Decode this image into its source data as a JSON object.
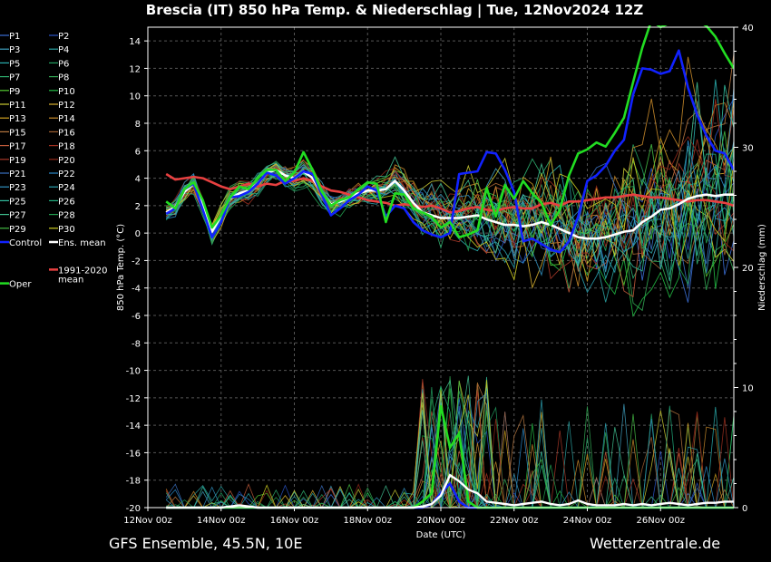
{
  "title": "Brescia  (IT)  850 hPa Temp. & Niederschlag | Tue, 12Nov2024 12Z",
  "footer_left": "GFS Ensemble, 45.5N, 10E",
  "footer_right": "Wetterzentrale.de",
  "chart_data": {
    "type": "line",
    "title": "Brescia  (IT)  850 hPa Temp. & Niederschlag | Tue, 12Nov2024 12Z",
    "xlabel": "Date (UTC)",
    "ylabel": "850 hPa Temp. (°C)",
    "y2label": "Niederschlag (mm)",
    "x_ticks": [
      "12Nov 00z",
      "14Nov 00z",
      "16Nov 00z",
      "18Nov 00z",
      "20Nov 00z",
      "22Nov 00z",
      "24Nov 00z",
      "26Nov 00z"
    ],
    "x_range_days": [
      0,
      16
    ],
    "ylim": [
      -20,
      15
    ],
    "y_ticks": [
      -20,
      -18,
      -16,
      -14,
      -12,
      -10,
      -8,
      -6,
      -4,
      -2,
      0,
      2,
      4,
      6,
      8,
      10,
      12,
      14
    ],
    "y2lim": [
      0,
      40
    ],
    "y2_ticks": [
      0,
      10,
      20,
      30,
      40
    ],
    "grid": true,
    "legend_placement": "left-outside",
    "legend": [
      "P1",
      "P2",
      "P3",
      "P4",
      "P5",
      "P6",
      "P7",
      "P8",
      "P9",
      "P10",
      "P11",
      "P12",
      "P13",
      "P14",
      "P15",
      "P16",
      "P17",
      "P18",
      "P19",
      "P20",
      "P21",
      "P22",
      "P23",
      "P24",
      "P25",
      "P26",
      "P27",
      "P28",
      "P29",
      "P30",
      "Control",
      "Ens. mean",
      "1991-2020 mean",
      "Oper"
    ],
    "colors": {
      "oper": "#22dd22",
      "control": "#1122ff",
      "ens_mean": "#ffffff",
      "climate_mean": "#e84040",
      "members": [
        "#3b6fd6",
        "#2a55c8",
        "#3fa0c0",
        "#2aa0a0",
        "#2ab0b0",
        "#22a060",
        "#2fb070",
        "#33aa55",
        "#55cc33",
        "#22bb44",
        "#cccc33",
        "#d8b030",
        "#d0a020",
        "#c88a2a",
        "#b87840",
        "#a06030",
        "#c05a3a",
        "#a03020",
        "#a83828",
        "#902818",
        "#3a70c0",
        "#2a88c8",
        "#3090c0",
        "#2aa0b0",
        "#33c0a0",
        "#22b080",
        "#40c090",
        "#22a050",
        "#44bb44",
        "#cccc22"
      ]
    },
    "x_days": [
      0.5,
      0.75,
      1.0,
      1.25,
      1.5,
      1.75,
      2.0,
      2.25,
      2.5,
      2.75,
      3.0,
      3.25,
      3.5,
      3.75,
      4.0,
      4.25,
      4.5,
      4.75,
      5.0,
      5.25,
      5.5,
      5.75,
      6.0,
      6.25,
      6.5,
      6.75,
      7.0,
      7.25,
      7.5,
      7.75,
      8.0,
      8.25,
      8.5,
      8.75,
      9.0,
      9.25,
      9.5,
      9.75,
      10.0,
      10.25,
      10.5,
      10.75,
      11.0,
      11.25,
      11.5,
      11.75,
      12.0,
      12.25,
      12.5,
      12.75,
      13.0,
      13.25,
      13.5,
      13.75,
      14.0,
      14.25,
      14.5,
      14.75,
      15.0,
      15.25,
      15.5,
      15.75,
      16.0
    ],
    "series": [
      {
        "name": "Oper",
        "values": [
          2.3,
          1.8,
          3.2,
          3.7,
          2.4,
          0.4,
          1.3,
          2.6,
          3.4,
          3.2,
          4.0,
          4.6,
          4.6,
          3.8,
          4.4,
          5.9,
          4.6,
          3.0,
          2.0,
          2.4,
          2.6,
          3.2,
          3.7,
          3.6,
          0.8,
          2.9,
          2.8,
          1.8,
          1.5,
          1.2,
          0.4,
          0.8,
          -0.3,
          -0.1,
          0.2,
          3.3,
          1.2,
          3.5,
          2.5,
          3.8,
          2.9,
          2.2,
          0.6,
          1.7,
          4.2,
          5.8,
          6.1,
          6.6,
          6.3,
          7.3,
          8.4,
          11.0,
          13.5,
          15.5,
          15.0,
          15.3,
          15.8,
          15.7,
          15.5,
          15.1,
          14.3,
          13.1,
          12.0
        ]
      },
      {
        "name": "Control",
        "values": [
          1.4,
          1.8,
          3.2,
          3.6,
          1.7,
          -0.3,
          0.8,
          2.6,
          2.7,
          3.0,
          3.6,
          4.4,
          4.2,
          3.6,
          4.0,
          4.5,
          4.3,
          2.8,
          1.3,
          1.8,
          2.4,
          2.8,
          3.4,
          3.1,
          1.2,
          2.0,
          1.8,
          0.8,
          0.2,
          -0.1,
          -0.3,
          0.0,
          4.3,
          4.4,
          4.5,
          5.9,
          5.8,
          4.6,
          3.0,
          -0.6,
          -0.4,
          -0.8,
          -1.2,
          -1.4,
          -0.6,
          1.2,
          3.8,
          4.2,
          4.9,
          6.0,
          6.8,
          10.1,
          12.0,
          11.9,
          11.6,
          11.8,
          13.3,
          10.6,
          8.6,
          7.1,
          6.0,
          5.8,
          4.6
        ]
      },
      {
        "name": "Ens. mean",
        "values": [
          1.5,
          1.9,
          3.0,
          3.6,
          2.0,
          0.1,
          1.3,
          2.5,
          2.9,
          3.1,
          3.6,
          4.4,
          4.6,
          4.2,
          4.0,
          4.5,
          4.0,
          2.9,
          2.1,
          2.3,
          2.6,
          2.9,
          3.1,
          3.1,
          3.2,
          3.8,
          3.1,
          2.2,
          1.5,
          1.3,
          1.1,
          1.1,
          1.1,
          1.2,
          1.3,
          1.0,
          0.8,
          0.6,
          0.6,
          0.5,
          0.6,
          0.8,
          0.6,
          0.3,
          0.0,
          -0.3,
          -0.4,
          -0.4,
          -0.3,
          -0.1,
          0.1,
          0.2,
          0.8,
          1.2,
          1.7,
          1.8,
          2.1,
          2.5,
          2.7,
          2.8,
          2.7,
          2.8,
          2.8
        ]
      },
      {
        "name": "1991-2020 mean",
        "values": [
          4.3,
          3.9,
          4.0,
          4.1,
          4.0,
          3.7,
          3.4,
          3.2,
          3.4,
          3.6,
          3.4,
          3.6,
          3.5,
          3.8,
          3.8,
          4.0,
          3.8,
          3.4,
          3.1,
          3.0,
          2.8,
          2.6,
          2.4,
          2.3,
          2.2,
          2.0,
          2.1,
          2.0,
          1.9,
          2.0,
          1.8,
          1.5,
          1.6,
          1.8,
          1.9,
          1.7,
          1.6,
          1.8,
          1.9,
          1.8,
          1.8,
          2.1,
          2.2,
          2.0,
          2.3,
          2.3,
          2.4,
          2.5,
          2.6,
          2.6,
          2.7,
          2.8,
          2.7,
          2.6,
          2.6,
          2.5,
          2.4,
          2.3,
          2.4,
          2.4,
          2.3,
          2.2,
          2.0
        ]
      }
    ],
    "precip_series": [
      {
        "name": "Oper",
        "values": [
          0,
          0,
          0,
          0,
          0,
          0,
          0,
          0,
          0,
          0,
          0,
          0,
          0,
          0,
          0,
          0,
          0,
          0,
          0,
          0,
          0,
          0,
          0,
          0,
          0,
          0,
          0,
          0,
          0.5,
          1.2,
          8.5,
          5.0,
          6.2,
          0.5,
          0,
          0,
          0,
          0,
          0,
          0,
          0,
          0,
          0,
          0,
          0,
          0,
          0,
          0,
          0,
          0,
          0,
          0,
          0,
          0,
          0,
          0,
          0,
          0,
          0,
          0,
          0,
          0,
          0
        ]
      },
      {
        "name": "Control",
        "values": [
          0,
          0,
          0,
          0,
          0,
          0,
          0,
          0,
          0,
          0,
          0,
          0,
          0,
          0,
          0,
          0,
          0,
          0,
          0,
          0,
          0,
          0,
          0,
          0,
          0,
          0,
          0,
          0,
          0,
          0.3,
          1.2,
          2.0,
          0.5,
          0,
          0,
          0,
          0,
          0,
          0,
          0,
          0,
          0,
          0,
          0,
          0,
          0,
          0,
          0,
          0,
          0,
          0,
          0,
          0,
          0,
          0,
          0,
          0,
          0,
          0,
          0,
          0,
          0,
          0
        ]
      },
      {
        "name": "Ens. mean",
        "values": [
          0,
          0,
          0,
          0,
          0,
          0,
          0,
          0.1,
          0.2,
          0.1,
          0,
          0,
          0,
          0,
          0,
          0,
          0,
          0,
          0,
          0,
          0,
          0,
          0,
          0,
          0,
          0,
          0,
          0,
          0.1,
          0.3,
          1.0,
          2.7,
          2.2,
          1.5,
          1.2,
          0.5,
          0.4,
          0.3,
          0.2,
          0.3,
          0.4,
          0.5,
          0.3,
          0.2,
          0.3,
          0.6,
          0.3,
          0.2,
          0.2,
          0.2,
          0.3,
          0.2,
          0.3,
          0.2,
          0.3,
          0.4,
          0.3,
          0.2,
          0.3,
          0.4,
          0.4,
          0.5,
          0.5
        ]
      }
    ]
  }
}
